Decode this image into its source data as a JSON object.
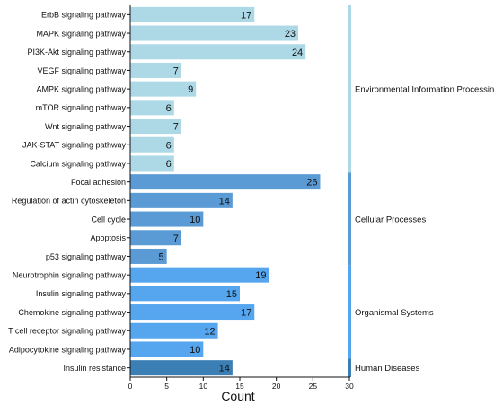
{
  "chart_data": {
    "type": "bar",
    "orientation": "horizontal",
    "xlabel": "Count",
    "xlim": [
      0,
      30
    ],
    "xticks": [
      0,
      5,
      10,
      15,
      20,
      25,
      30
    ],
    "grid": false,
    "colors": {
      "Environmental Information Processing": "#add8e6",
      "Cellular Processes": "#5b9bd5",
      "Organismal Systems": "#55a6ee",
      "Human Diseases": "#3b7fb5"
    },
    "categories": [
      "ErbB signaling pathway",
      "MAPK signaling pathway",
      "PI3K-Akt signaling pathway",
      "VEGF signaling pathway",
      "AMPK signaling pathway",
      "mTOR signaling pathway",
      "Wnt signaling pathway",
      "JAK-STAT signaling pathway",
      "Calcium signaling pathway",
      "Focal adhesion",
      "Regulation of actin cytoskeleton",
      "Cell cycle",
      "Apoptosis",
      "p53 signaling pathway",
      "Neurotrophin signaling pathway",
      "Insulin signaling pathway",
      "Chemokine signaling pathway",
      "T cell receptor signaling pathway",
      "Adipocytokine signaling pathway",
      "Insulin resistance"
    ],
    "values": [
      17,
      23,
      24,
      7,
      9,
      6,
      7,
      6,
      6,
      26,
      14,
      10,
      7,
      5,
      19,
      15,
      17,
      12,
      10,
      14
    ],
    "groups": [
      {
        "name": "Environmental Information Processing",
        "start": 0,
        "end": 8
      },
      {
        "name": "Cellular Processes",
        "start": 9,
        "end": 13
      },
      {
        "name": "Organismal Systems",
        "start": 14,
        "end": 18
      },
      {
        "name": "Human Diseases",
        "start": 19,
        "end": 19
      }
    ]
  }
}
